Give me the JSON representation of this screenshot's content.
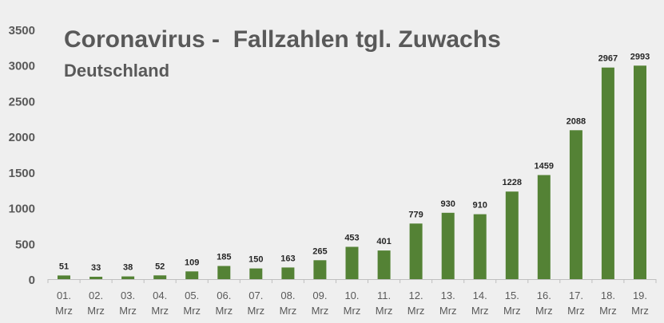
{
  "chart_data": {
    "type": "bar",
    "title": "Coronavirus -  Fallzahlen tgl. Zuwachs",
    "subtitle": "Deutschland",
    "xlabel": "",
    "ylabel": "",
    "ylim": [
      0,
      3500
    ],
    "yticks": [
      0,
      500,
      1000,
      1500,
      2000,
      2500,
      3000,
      3500
    ],
    "grid": false,
    "legend": "none",
    "bar_color": "#548235",
    "categories": [
      [
        "01.",
        "Mrz"
      ],
      [
        "02.",
        "Mrz"
      ],
      [
        "03.",
        "Mrz"
      ],
      [
        "04.",
        "Mrz"
      ],
      [
        "05.",
        "Mrz"
      ],
      [
        "06.",
        "Mrz"
      ],
      [
        "07.",
        "Mrz"
      ],
      [
        "08.",
        "Mrz"
      ],
      [
        "09.",
        "Mrz"
      ],
      [
        "10.",
        "Mrz"
      ],
      [
        "11.",
        "Mrz"
      ],
      [
        "12.",
        "Mrz"
      ],
      [
        "13.",
        "Mrz"
      ],
      [
        "14.",
        "Mrz"
      ],
      [
        "15.",
        "Mrz"
      ],
      [
        "16.",
        "Mrz"
      ],
      [
        "17.",
        "Mrz"
      ],
      [
        "18.",
        "Mrz"
      ],
      [
        "19.",
        "Mrz"
      ]
    ],
    "values": [
      51,
      33,
      38,
      52,
      109,
      185,
      150,
      163,
      265,
      453,
      401,
      779,
      930,
      910,
      1228,
      1459,
      2088,
      2967,
      2993
    ]
  }
}
